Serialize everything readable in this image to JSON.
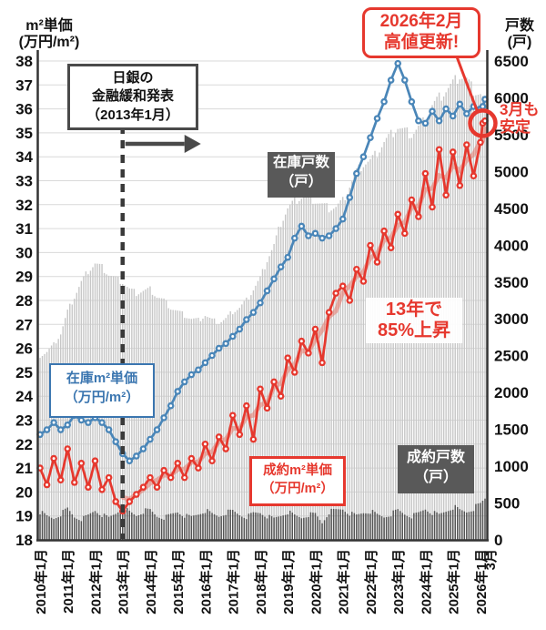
{
  "axis": {
    "left_title": [
      "m²単価",
      "(万円/m²)"
    ],
    "right_title": [
      "戸数",
      "(戸)"
    ],
    "left_ticks": [
      38,
      37,
      36,
      35,
      34,
      33,
      32,
      31,
      30,
      29,
      28,
      27,
      26,
      25,
      24,
      23,
      22,
      21,
      20,
      19,
      18
    ],
    "right_ticks": [
      6500,
      6000,
      5500,
      5000,
      4500,
      4000,
      3500,
      3000,
      2500,
      2000,
      1500,
      1000,
      500,
      0
    ]
  },
  "annotations": {
    "boj": [
      "日銀の",
      "金融緩和発表",
      "（2013年1月）"
    ],
    "record": [
      "2026年2月",
      "高値更新!"
    ],
    "march_note": [
      "3月も",
      "安定"
    ],
    "rise_note": [
      "13年で",
      "85%上昇"
    ]
  },
  "series_labels": {
    "zaiko_kosu": [
      "在庫戸数",
      "（戸）"
    ],
    "seiyaku_kosu": [
      "成約戸数",
      "（戸）"
    ],
    "zaiko_tanka": [
      "在庫m²単価",
      "（万円/m²）"
    ],
    "seiyaku_tanka": [
      "成約m²単価",
      "（万円/m²）"
    ]
  },
  "chart_data": {
    "type": "line+bar combo",
    "x_unit": "month",
    "x_start": "2010-01",
    "x_end": "2026-03",
    "left_axis": {
      "label": "m²単価(万円/m²)",
      "min": 18,
      "max": 38,
      "tick_step": 1
    },
    "right_axis": {
      "label": "戸数(戸)",
      "min": 0,
      "max": 6500,
      "tick_step": 500
    },
    "x_tick_labels": [
      "2010年1月",
      "2011年1月",
      "2012年1月",
      "2013年1月",
      "2014年1月",
      "2015年1月",
      "2016年1月",
      "2017年1月",
      "2018年1月",
      "2019年1月",
      "2020年1月",
      "2021年1月",
      "2022年1月",
      "2023年1月",
      "2024年1月",
      "2025年1月",
      "2026年1月",
      "3月"
    ],
    "x_tick_month_index": [
      0,
      12,
      24,
      36,
      48,
      60,
      72,
      84,
      96,
      108,
      120,
      132,
      144,
      156,
      168,
      180,
      192,
      194
    ],
    "anchor_month_index": [
      0,
      3,
      6,
      9,
      12,
      15,
      18,
      21,
      24,
      27,
      30,
      33,
      36,
      39,
      42,
      45,
      48,
      51,
      54,
      57,
      60,
      63,
      66,
      69,
      72,
      75,
      78,
      81,
      84,
      87,
      90,
      93,
      96,
      99,
      102,
      105,
      108,
      111,
      114,
      117,
      120,
      123,
      126,
      129,
      132,
      135,
      138,
      141,
      144,
      147,
      150,
      153,
      156,
      159,
      162,
      165,
      168,
      171,
      174,
      177,
      180,
      183,
      186,
      189,
      192,
      193,
      194
    ],
    "series": [
      {
        "name": "在庫戸数",
        "type": "bar",
        "axis": "right",
        "color": "#c7c7c7",
        "values": [
          2500,
          2550,
          2650,
          2800,
          3100,
          3300,
          3500,
          3650,
          3750,
          3700,
          3600,
          3550,
          3500,
          3400,
          3350,
          3380,
          3400,
          3300,
          3250,
          3150,
          3100,
          3050,
          3000,
          2980,
          3050,
          2980,
          2950,
          3000,
          3100,
          3150,
          3250,
          3400,
          3550,
          3800,
          4000,
          4300,
          4500,
          4600,
          4650,
          4650,
          4600,
          4550,
          4500,
          4520,
          4600,
          4800,
          5000,
          5100,
          5150,
          5250,
          5400,
          5500,
          5600,
          5550,
          5500,
          5600,
          5700,
          5900,
          6000,
          6100,
          6200,
          6300,
          6250,
          6100,
          6050,
          6000,
          5980
        ]
      },
      {
        "name": "成約戸数",
        "type": "bar",
        "axis": "right",
        "color": "#545454",
        "values": [
          380,
          320,
          290,
          350,
          420,
          310,
          280,
          330,
          400,
          340,
          300,
          360,
          450,
          380,
          330,
          390,
          400,
          320,
          300,
          340,
          380,
          330,
          310,
          350,
          400,
          350,
          320,
          370,
          390,
          340,
          310,
          360,
          370,
          320,
          290,
          330,
          380,
          330,
          300,
          340,
          350,
          230,
          380,
          400,
          420,
          360,
          330,
          370,
          390,
          340,
          310,
          350,
          400,
          350,
          320,
          360,
          420,
          370,
          340,
          390,
          450,
          400,
          380,
          430,
          480,
          520,
          560
        ]
      },
      {
        "name": "在庫m²単価",
        "type": "line",
        "axis": "left",
        "color": "#4a86b8",
        "values": [
          22.4,
          22.6,
          22.9,
          22.6,
          22.8,
          23.2,
          23.0,
          22.9,
          23.1,
          22.9,
          22.6,
          22.1,
          21.6,
          21.3,
          21.5,
          21.8,
          22.2,
          22.6,
          23.1,
          23.6,
          24.2,
          24.6,
          24.9,
          25.1,
          25.4,
          25.7,
          26.0,
          26.2,
          26.5,
          26.8,
          27.2,
          27.5,
          27.9,
          28.4,
          28.9,
          29.4,
          29.8,
          30.6,
          31.1,
          30.7,
          30.8,
          30.6,
          30.7,
          31.0,
          31.4,
          32.3,
          33.3,
          34.0,
          34.8,
          35.6,
          36.3,
          37.2,
          37.9,
          37.2,
          36.3,
          35.5,
          35.4,
          35.9,
          35.5,
          36.0,
          35.7,
          36.2,
          35.8,
          36.1,
          36.0,
          36.1,
          36.4
        ]
      },
      {
        "name": "成約m²単価",
        "type": "line",
        "axis": "left",
        "color": "#e6382e",
        "values": [
          21.0,
          20.3,
          21.4,
          20.5,
          21.8,
          20.4,
          21.2,
          20.2,
          21.3,
          20.1,
          20.6,
          19.6,
          19.2,
          19.6,
          19.9,
          20.2,
          20.6,
          20.2,
          20.9,
          20.6,
          21.2,
          20.6,
          21.4,
          21.0,
          22.0,
          21.3,
          22.3,
          21.8,
          23.2,
          22.4,
          23.6,
          22.2,
          24.3,
          23.5,
          24.6,
          24.0,
          25.6,
          25.0,
          26.3,
          25.8,
          26.8,
          25.4,
          27.5,
          28.3,
          28.6,
          28.0,
          29.3,
          28.8,
          30.3,
          29.6,
          30.9,
          30.2,
          31.6,
          30.8,
          32.2,
          31.5,
          33.3,
          31.9,
          34.3,
          32.4,
          34.2,
          32.8,
          34.5,
          33.2,
          34.6,
          35.4,
          35.5
        ]
      }
    ],
    "trend_line": {
      "series": "成約m²単価",
      "style": "moving-average-from-2013",
      "color": "rgba(232,110,95,0.5)"
    },
    "event_line": {
      "month_index": 36,
      "label": "日銀の金融緩和発表（2013年1月）"
    },
    "highlight": {
      "month_index": 193,
      "value": 35.4,
      "label": "2026年2月 高値更新!"
    }
  }
}
